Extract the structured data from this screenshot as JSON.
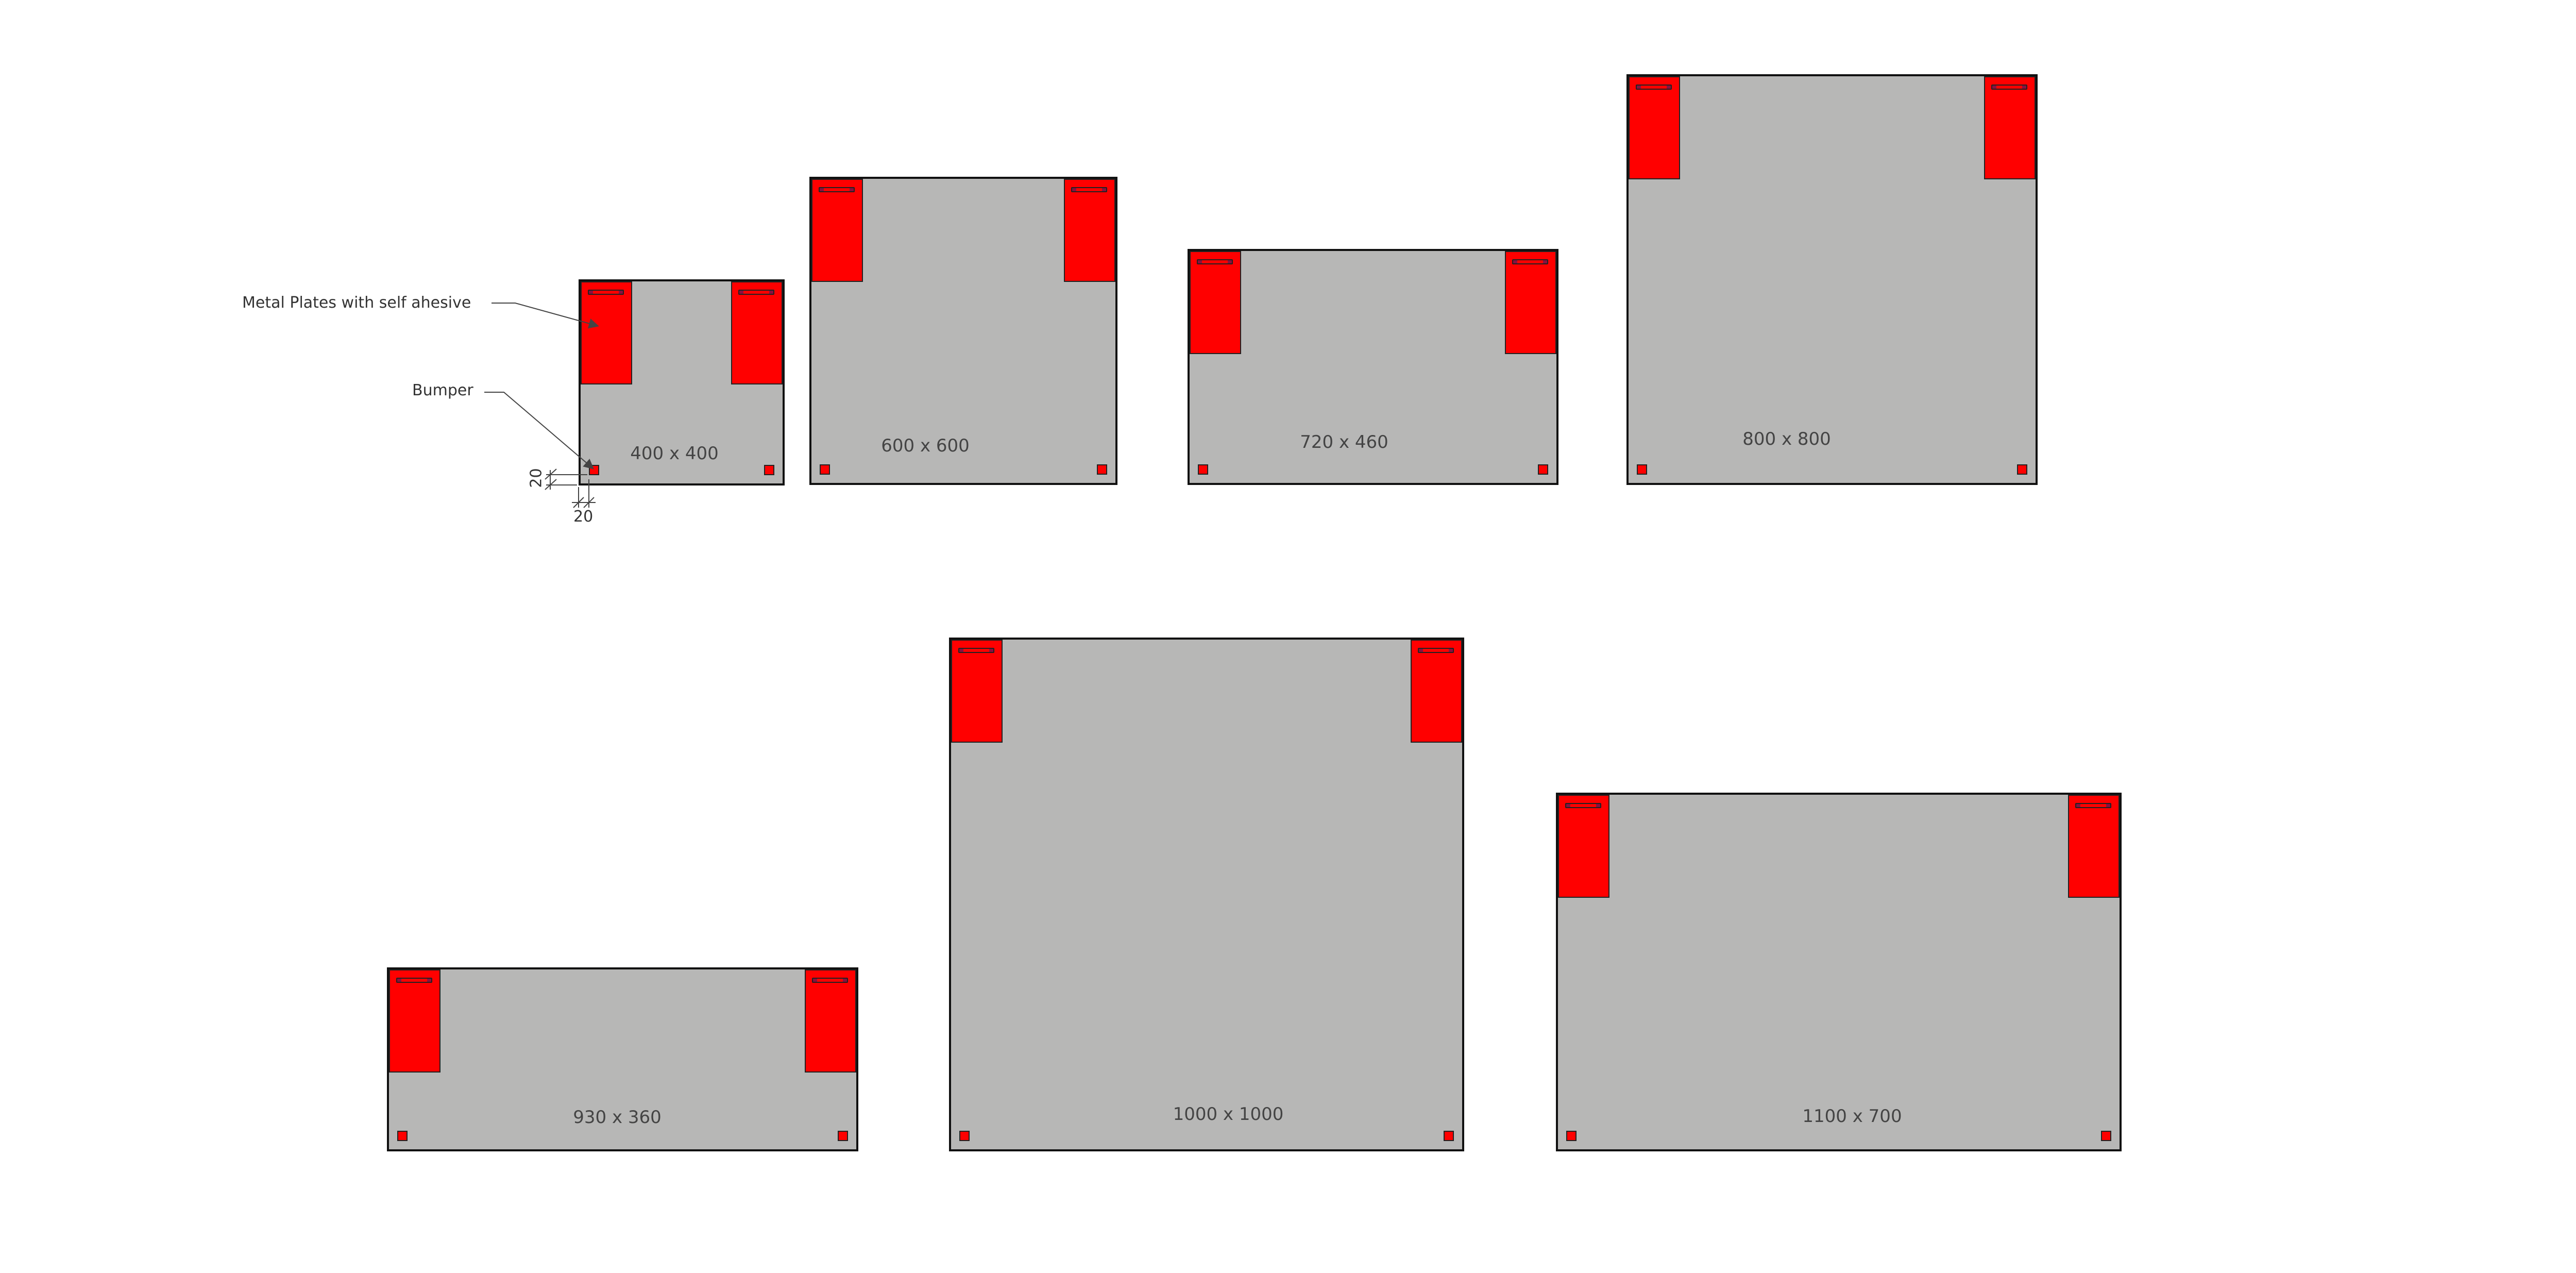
{
  "colors": {
    "panel": "#b7b7b6",
    "plate": "#ff0000",
    "outline": "#111111",
    "text": "#444444"
  },
  "annotations": {
    "metal_plates": "Metal Plates with self ahesive",
    "bumper": "Bumper",
    "bumper_offset_vertical": "20",
    "bumper_offset_horizontal": "20"
  },
  "panels": [
    {
      "label": "400 x 400"
    },
    {
      "label": "600 x 600"
    },
    {
      "label": "720 x 460"
    },
    {
      "label": "800 x 800"
    },
    {
      "label": "930 x 360"
    },
    {
      "label": "1000 x 1000"
    },
    {
      "label": "1100 x 700"
    }
  ]
}
